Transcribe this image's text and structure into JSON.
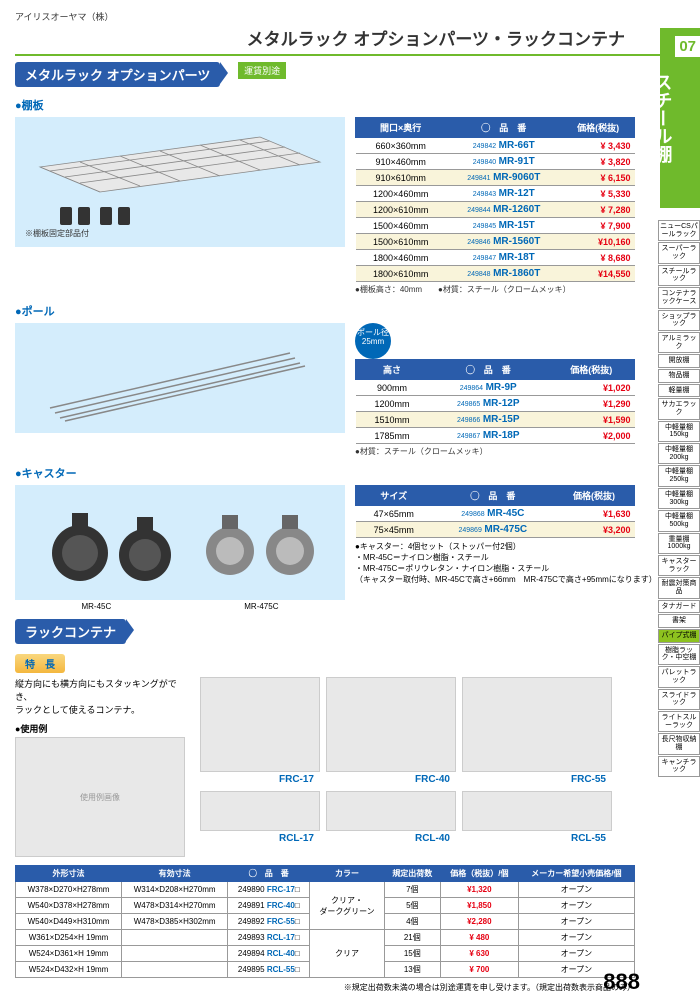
{
  "company": "アイリスオーヤマ（株）",
  "title": "メタルラック オプションパーツ・ラックコンテナ",
  "section_num": "07",
  "section_name": "スチール棚",
  "opt_parts_hdr": "メタルラック オプションパーツ",
  "ship_label": "運賃別途",
  "shelf": {
    "hdr": "●棚板",
    "note": "※棚板固定部品付",
    "th": [
      "間口×奥行",
      "◯　品　番",
      "価格(税抜)"
    ],
    "rows": [
      {
        "d": "660×360mm",
        "c": "249842",
        "m": "MR-66T",
        "p": "¥ 3,430"
      },
      {
        "d": "910×460mm",
        "c": "249840",
        "m": "MR-91T",
        "p": "¥ 3,820"
      },
      {
        "d": "910×610mm",
        "c": "249841",
        "m": "MR-9060T",
        "p": "¥ 6,150",
        "hl": true
      },
      {
        "d": "1200×460mm",
        "c": "249843",
        "m": "MR-12T",
        "p": "¥ 5,330"
      },
      {
        "d": "1200×610mm",
        "c": "249844",
        "m": "MR-1260T",
        "p": "¥ 7,280",
        "hl": true
      },
      {
        "d": "1500×460mm",
        "c": "249845",
        "m": "MR-15T",
        "p": "¥ 7,900"
      },
      {
        "d": "1500×610mm",
        "c": "249846",
        "m": "MR-1560T",
        "p": "¥10,160",
        "hl": true
      },
      {
        "d": "1800×460mm",
        "c": "249847",
        "m": "MR-18T",
        "p": "¥ 8,680"
      },
      {
        "d": "1800×610mm",
        "c": "249848",
        "m": "MR-1860T",
        "p": "¥14,550",
        "hl": true
      }
    ],
    "foot": "●棚板高さ：40mm　　●材質：スチール（クロームメッキ）"
  },
  "pole": {
    "hdr": "●ポール",
    "badge": "ポール径\n25mm",
    "th": [
      "高さ",
      "◯　品　番",
      "価格(税抜)"
    ],
    "rows": [
      {
        "d": "900mm",
        "c": "249864",
        "m": "MR-9P",
        "p": "¥1,020"
      },
      {
        "d": "1200mm",
        "c": "249865",
        "m": "MR-12P",
        "p": "¥1,290"
      },
      {
        "d": "1510mm",
        "c": "249866",
        "m": "MR-15P",
        "p": "¥1,590",
        "hl": true
      },
      {
        "d": "1785mm",
        "c": "249867",
        "m": "MR-18P",
        "p": "¥2,000"
      }
    ],
    "foot": "●材質：スチール（クロームメッキ）"
  },
  "caster": {
    "hdr": "●キャスター",
    "labels": [
      "MR-45C",
      "MR-475C"
    ],
    "th": [
      "サイズ",
      "◯　品　番",
      "価格(税抜)"
    ],
    "rows": [
      {
        "d": "47×65mm",
        "c": "249868",
        "m": "MR-45C",
        "p": "¥1,630"
      },
      {
        "d": "75×45mm",
        "c": "249869",
        "m": "MR-475C",
        "p": "¥3,200",
        "hl": true
      }
    ],
    "notes": [
      "●キャスター：4個セット（ストッパー付2個）",
      "・MR-45C＝ナイロン樹脂・スチール",
      "・MR-475C＝ポリウレタン・ナイロン樹脂・スチール",
      "（キャスター取付時、MR-45Cで高さ+66mm　MR-475Cで高さ+95mmになります）"
    ]
  },
  "rack": {
    "hdr": "ラックコンテナ",
    "feat": "特　長",
    "desc": "縦方向にも横方向にもスタッキングができ、\nラックとして使えるコンテナ。",
    "usage": "●使用例",
    "products": [
      "FRC-17",
      "FRC-40",
      "FRC-55",
      "RCL-17",
      "RCL-40",
      "RCL-55"
    ],
    "th": [
      "外形寸法",
      "有効寸法",
      "◯　品　番",
      "カラー",
      "規定出荷数",
      "価格（税抜）/個",
      "メーカー希望小売価格/個"
    ],
    "rows": [
      {
        "o": "W378×D270×H278mm",
        "e": "W314×D208×H270mm",
        "c": "249890",
        "m": "FRC-17",
        "col": "クリア・\nダークグリーン",
        "q": "7個",
        "p": "¥1,320",
        "mp": "オープン"
      },
      {
        "o": "W540×D378×H278mm",
        "e": "W478×D314×H270mm",
        "c": "249891",
        "m": "FRC-40",
        "col": "",
        "q": "5個",
        "p": "¥1,850",
        "mp": "オープン"
      },
      {
        "o": "W540×D449×H310mm",
        "e": "W478×D385×H302mm",
        "c": "249892",
        "m": "FRC-55",
        "col": "",
        "q": "4個",
        "p": "¥2,280",
        "mp": "オープン"
      },
      {
        "o": "W361×D254×H 19mm",
        "e": "",
        "c": "249893",
        "m": "RCL-17",
        "col": "クリア",
        "q": "21個",
        "p": "¥ 480",
        "mp": "オープン"
      },
      {
        "o": "W524×D361×H 19mm",
        "e": "",
        "c": "249894",
        "m": "RCL-40",
        "col": "",
        "q": "15個",
        "p": "¥ 630",
        "mp": "オープン"
      },
      {
        "o": "W524×D432×H 19mm",
        "e": "",
        "c": "249895",
        "m": "RCL-55",
        "col": "",
        "q": "13個",
        "p": "¥ 700",
        "mp": "オープン"
      }
    ]
  },
  "disclaimer": "※規定出荷数未満の場合は別途運賃を申し受けます。（規定出荷数表示商品のみ）",
  "page_num": "888",
  "side_nav": [
    "ニューCSパールラック",
    "スーパーラック",
    "スチールラック",
    "コンテナラックケース",
    "ショップラック",
    "アルミラック",
    "開放棚",
    "物品棚",
    "軽量棚",
    "サカエラック",
    "中軽量棚150kg",
    "中軽量棚200kg",
    "中軽量棚250kg",
    "中軽量棚300kg",
    "中軽量棚500kg",
    "重量棚1000kg",
    "キャスターラック",
    "耐震対策商品",
    "タナガード",
    "書架",
    "パイプ式棚",
    "樹脂ラック・中空棚",
    "パレットラック",
    "スライドラック",
    "ライトスルーラック",
    "長尺物収納棚",
    "キャンチラック"
  ],
  "side_active": 20
}
